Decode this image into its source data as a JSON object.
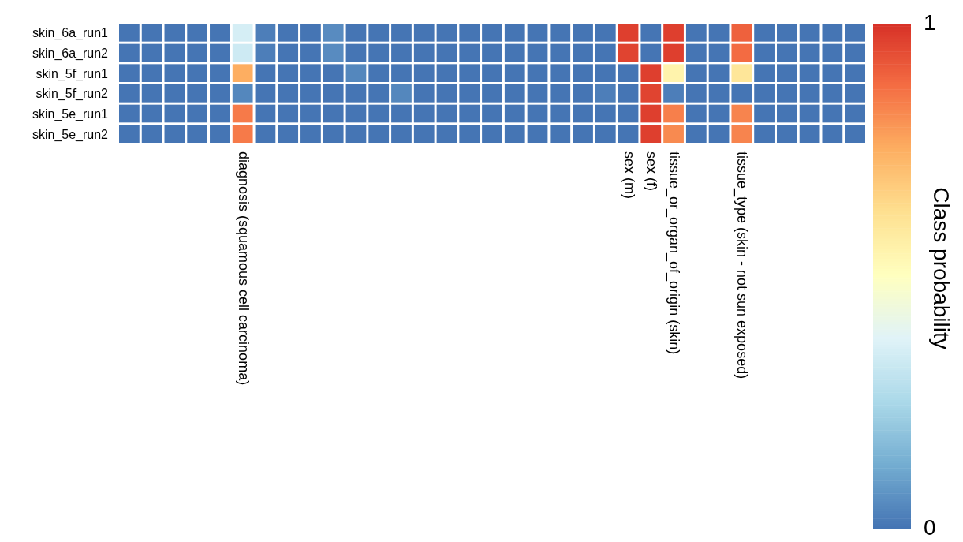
{
  "chart_data": {
    "type": "heatmap",
    "categories": [
      null,
      null,
      null,
      null,
      null,
      "diagnosis (squamous cell carcinoma)",
      null,
      null,
      null,
      null,
      null,
      null,
      null,
      null,
      null,
      null,
      null,
      null,
      null,
      null,
      null,
      null,
      "sex (m)",
      "sex (f)",
      "tissue_or_organ_of_origin (skin)",
      null,
      null,
      "tissue_type (skin - not sun exposed)",
      null,
      null,
      null,
      null,
      null
    ],
    "y_categories": [
      "skin_6a_run1",
      "skin_6a_run2",
      "skin_5f_run1",
      "skin_5f_run2",
      "skin_5e_run1",
      "skin_5e_run2"
    ],
    "cells": [
      [
        0,
        0,
        0,
        0,
        0,
        0.35,
        0.02,
        0,
        0,
        0.05,
        0,
        0,
        0,
        0,
        0,
        0,
        0,
        0,
        0,
        0,
        0,
        0,
        0.97,
        0,
        0.97,
        0,
        0,
        0.9,
        0,
        0,
        0,
        0,
        0
      ],
      [
        0,
        0,
        0,
        0,
        0,
        0.33,
        0.02,
        0,
        0,
        0.05,
        0,
        0,
        0,
        0,
        0,
        0,
        0,
        0,
        0,
        0,
        0,
        0,
        0.96,
        0,
        0.97,
        0,
        0,
        0.88,
        0,
        0,
        0,
        0,
        0
      ],
      [
        0,
        0,
        0,
        0,
        0,
        0.75,
        0,
        0,
        0,
        0,
        0.04,
        0,
        0,
        0,
        0,
        0,
        0,
        0,
        0,
        0,
        0,
        0,
        0,
        0.97,
        0.55,
        0,
        0,
        0.6,
        0,
        0,
        0,
        0,
        0
      ],
      [
        0,
        0,
        0,
        0,
        0,
        0.04,
        0,
        0,
        0,
        0,
        0,
        0,
        0.04,
        0,
        0,
        0,
        0,
        0,
        0,
        0,
        0,
        0.02,
        0,
        0.96,
        0.02,
        0,
        0,
        0,
        0,
        0,
        0,
        0,
        0
      ],
      [
        0,
        0,
        0,
        0,
        0,
        0.85,
        0,
        0,
        0,
        0,
        0,
        0,
        0,
        0,
        0,
        0,
        0,
        0,
        0,
        0,
        0,
        0,
        0,
        0.97,
        0.84,
        0,
        0,
        0.83,
        0,
        0,
        0,
        0,
        0
      ],
      [
        0,
        0,
        0,
        0,
        0,
        0.85,
        0,
        0,
        0,
        0,
        0,
        0,
        0,
        0,
        0,
        0,
        0,
        0,
        0,
        0,
        0,
        0,
        0,
        0.97,
        0.82,
        0,
        0,
        0.83,
        0,
        0,
        0,
        0,
        0
      ]
    ],
    "clim": [
      0,
      1
    ],
    "cticks": [
      0,
      1
    ],
    "clabel": "Class probability"
  }
}
